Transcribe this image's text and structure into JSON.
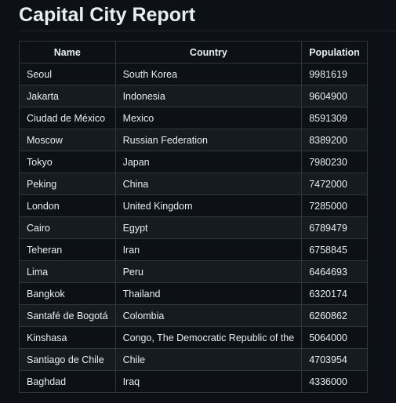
{
  "page": {
    "title": "Capital City Report"
  },
  "table": {
    "headers": {
      "name": "Name",
      "country": "Country",
      "population": "Population"
    },
    "rows": [
      {
        "name": "Seoul",
        "country": "South Korea",
        "population": "9981619"
      },
      {
        "name": "Jakarta",
        "country": "Indonesia",
        "population": "9604900"
      },
      {
        "name": "Ciudad de México",
        "country": "Mexico",
        "population": "8591309"
      },
      {
        "name": "Moscow",
        "country": "Russian Federation",
        "population": "8389200"
      },
      {
        "name": "Tokyo",
        "country": "Japan",
        "population": "7980230"
      },
      {
        "name": "Peking",
        "country": "China",
        "population": "7472000"
      },
      {
        "name": "London",
        "country": "United Kingdom",
        "population": "7285000"
      },
      {
        "name": "Cairo",
        "country": "Egypt",
        "population": "6789479"
      },
      {
        "name": "Teheran",
        "country": "Iran",
        "population": "6758845"
      },
      {
        "name": "Lima",
        "country": "Peru",
        "population": "6464693"
      },
      {
        "name": "Bangkok",
        "country": "Thailand",
        "population": "6320174"
      },
      {
        "name": "Santafé de Bogotá",
        "country": "Colombia",
        "population": "6260862"
      },
      {
        "name": "Kinshasa",
        "country": "Congo, The Democratic Republic of the",
        "population": "5064000"
      },
      {
        "name": "Santiago de Chile",
        "country": "Chile",
        "population": "4703954"
      },
      {
        "name": "Baghdad",
        "country": "Iraq",
        "population": "4336000"
      }
    ]
  },
  "colors": {
    "background": "#0d1117",
    "row_alt": "#161b22",
    "border": "#30363d",
    "text": "#e6edf3"
  }
}
